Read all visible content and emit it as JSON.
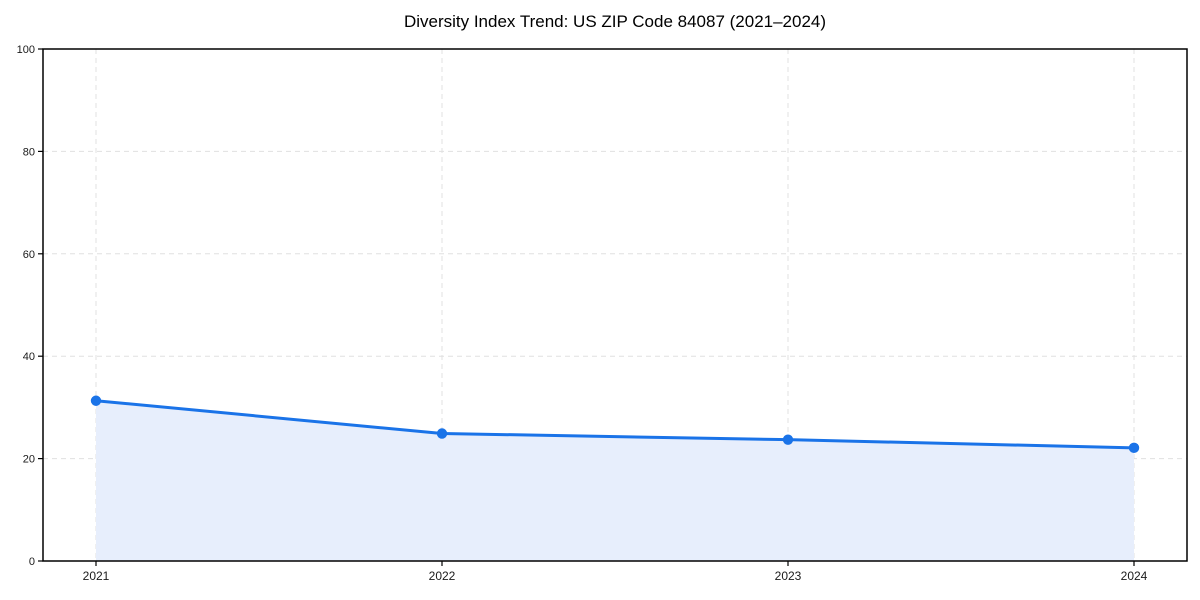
{
  "chart_data": {
    "type": "area",
    "title": "Diversity Index Trend: US ZIP Code 84087 (2021–2024)",
    "categories": [
      "2021",
      "2022",
      "2023",
      "2024"
    ],
    "series": [
      {
        "name": "Diversity Index",
        "values": [
          31.3,
          24.9,
          23.7,
          22.1
        ]
      }
    ],
    "xlabel": "",
    "ylabel": "",
    "ylim": [
      0,
      100
    ],
    "yticks": [
      0,
      20,
      40,
      60,
      80,
      100
    ],
    "grid": "dashed, horizontal and vertical at ticks",
    "legend_position": "none",
    "colors": {
      "line": "#1a73e8",
      "marker": "#1a73e8",
      "area_fill": "#e7eefc",
      "gridline": "#e0e0e0",
      "axis_frame": "#000000",
      "tick_text": "#1a1a1a",
      "background": "#ffffff"
    }
  }
}
